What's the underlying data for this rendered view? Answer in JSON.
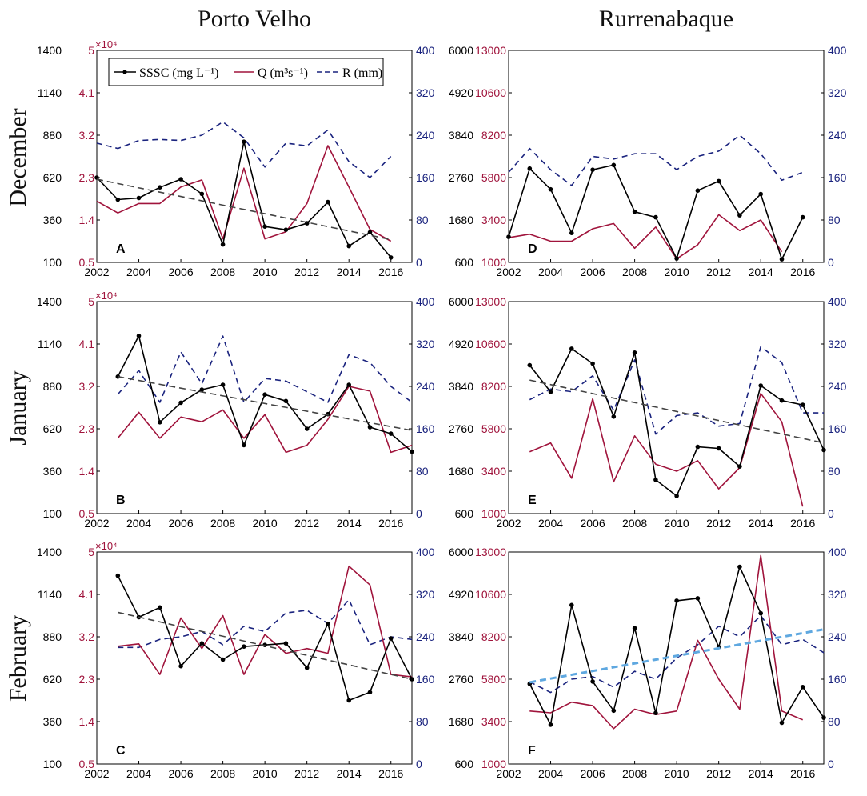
{
  "figure": {
    "column_titles": [
      "Porto Velho",
      "Rurrenabaque"
    ],
    "row_titles": [
      "December",
      "January",
      "February"
    ]
  },
  "colors": {
    "sssc": "#000000",
    "q": "#a0143c",
    "r": "#1a237e",
    "trend_dark": "#444444",
    "trend_light": "#5fa8e0",
    "frame": "#000000"
  },
  "legend": {
    "sssc": "SSSC (mg L⁻¹)",
    "q": "Q (m³s⁻¹)",
    "r": "R (mm)"
  },
  "chart_data": [
    {
      "panel": "A",
      "station": "Porto Velho",
      "month": "December",
      "type": "line",
      "x": [
        2002,
        2003,
        2004,
        2005,
        2006,
        2007,
        2008,
        2009,
        2010,
        2011,
        2012,
        2013,
        2014,
        2015,
        2016
      ],
      "xlim": [
        2002,
        2017
      ],
      "xticks": [
        2002,
        2004,
        2006,
        2008,
        2010,
        2012,
        2014,
        2016
      ],
      "left_ticks": [
        "100",
        "360",
        "620",
        "880",
        "1140",
        "1400"
      ],
      "left_lim": [
        100,
        1400
      ],
      "q_ticks": [
        "0.5",
        "1.4",
        "2.3",
        "3.2",
        "4.1",
        "5"
      ],
      "q_lim": [
        0.5,
        5
      ],
      "q_multiplier": "×10⁴",
      "right_ticks": [
        "0",
        "80",
        "160",
        "240",
        "320",
        "400"
      ],
      "right_lim": [
        0,
        400
      ],
      "series": [
        {
          "name": "SSSC",
          "axis": "left",
          "style": "solid-marker",
          "values": [
            620,
            485,
            495,
            560,
            610,
            520,
            210,
            840,
            320,
            300,
            340,
            470,
            200,
            285,
            130
          ]
        },
        {
          "name": "Q",
          "axis": "q",
          "style": "solid",
          "values": [
            1.8,
            1.55,
            1.75,
            1.75,
            2.1,
            2.25,
            1.0,
            2.5,
            1.0,
            1.15,
            1.75,
            2.98,
            2.1,
            1.2,
            0.95
          ]
        },
        {
          "name": "R",
          "axis": "right",
          "style": "dashed",
          "values": [
            225,
            215,
            230,
            232,
            230,
            240,
            265,
            235,
            180,
            225,
            220,
            250,
            190,
            160,
            200
          ]
        }
      ],
      "trend": {
        "axis": "left",
        "from": [
          2002,
          610
        ],
        "to": [
          2016,
          240
        ],
        "color": "dark"
      }
    },
    {
      "panel": "B",
      "station": "Porto Velho",
      "month": "January",
      "type": "line",
      "x": [
        2003,
        2004,
        2005,
        2006,
        2007,
        2008,
        2009,
        2010,
        2011,
        2012,
        2013,
        2014,
        2015,
        2016,
        2017
      ],
      "xlim": [
        2002,
        2017
      ],
      "xticks": [
        2002,
        2004,
        2006,
        2008,
        2010,
        2012,
        2014,
        2016
      ],
      "left_ticks": [
        "100",
        "360",
        "620",
        "880",
        "1140",
        "1400"
      ],
      "left_lim": [
        100,
        1400
      ],
      "q_ticks": [
        "0.5",
        "1.4",
        "2.3",
        "3.2",
        "4.1",
        "5"
      ],
      "q_lim": [
        0.5,
        5
      ],
      "q_multiplier": "×10⁴",
      "right_ticks": [
        "0",
        "80",
        "160",
        "240",
        "320",
        "400"
      ],
      "right_lim": [
        0,
        400
      ],
      "series": [
        {
          "name": "SSSC",
          "axis": "left",
          "style": "solid-marker",
          "values": [
            940,
            1190,
            660,
            780,
            860,
            890,
            520,
            830,
            790,
            620,
            710,
            890,
            630,
            590,
            480
          ]
        },
        {
          "name": "Q",
          "axis": "q",
          "style": "solid",
          "values": [
            2.1,
            2.65,
            2.1,
            2.55,
            2.45,
            2.7,
            2.1,
            2.6,
            1.8,
            1.95,
            2.5,
            3.2,
            3.1,
            1.8,
            1.95
          ]
        },
        {
          "name": "R",
          "axis": "right",
          "style": "dashed",
          "values": [
            225,
            270,
            210,
            305,
            245,
            335,
            210,
            255,
            250,
            230,
            210,
            300,
            285,
            240,
            210
          ]
        }
      ],
      "trend": {
        "axis": "left",
        "from": [
          2003,
          940
        ],
        "to": [
          2017,
          610
        ],
        "color": "dark"
      }
    },
    {
      "panel": "C",
      "station": "Porto Velho",
      "month": "February",
      "type": "line",
      "x": [
        2003,
        2004,
        2005,
        2006,
        2007,
        2008,
        2009,
        2010,
        2011,
        2012,
        2013,
        2014,
        2015,
        2016,
        2017
      ],
      "xlim": [
        2002,
        2017
      ],
      "xticks": [
        2002,
        2004,
        2006,
        2008,
        2010,
        2012,
        2014,
        2016
      ],
      "left_ticks": [
        "100",
        "360",
        "620",
        "880",
        "1140",
        "1400"
      ],
      "left_lim": [
        100,
        1400
      ],
      "q_ticks": [
        "0.5",
        "1.4",
        "2.3",
        "3.2",
        "4.1",
        "5"
      ],
      "q_lim": [
        0.5,
        5
      ],
      "q_multiplier": "×10⁴",
      "right_ticks": [
        "0",
        "80",
        "160",
        "240",
        "320",
        "400"
      ],
      "right_lim": [
        0,
        400
      ],
      "series": [
        {
          "name": "SSSC",
          "axis": "left",
          "style": "solid-marker",
          "values": [
            1255,
            1000,
            1060,
            700,
            840,
            740,
            820,
            830,
            840,
            690,
            960,
            490,
            540,
            870,
            620
          ]
        },
        {
          "name": "Q",
          "axis": "q",
          "style": "solid",
          "values": [
            3.0,
            3.05,
            2.4,
            3.6,
            2.95,
            3.65,
            2.4,
            3.25,
            2.85,
            2.95,
            2.85,
            4.7,
            4.3,
            2.4,
            2.35
          ]
        },
        {
          "name": "R",
          "axis": "right",
          "style": "dashed",
          "values": [
            220,
            220,
            235,
            240,
            250,
            225,
            260,
            250,
            285,
            290,
            265,
            310,
            225,
            240,
            235
          ]
        }
      ],
      "trend": {
        "axis": "left",
        "from": [
          2003,
          1030
        ],
        "to": [
          2017,
          620
        ],
        "color": "dark"
      }
    },
    {
      "panel": "D",
      "station": "Rurrenabaque",
      "month": "December",
      "type": "line",
      "x": [
        2002,
        2003,
        2004,
        2005,
        2006,
        2007,
        2008,
        2009,
        2010,
        2011,
        2012,
        2013,
        2014,
        2015,
        2016
      ],
      "xlim": [
        2002,
        2017
      ],
      "xticks": [
        2002,
        2004,
        2006,
        2008,
        2010,
        2012,
        2014,
        2016
      ],
      "left_ticks": [
        "600",
        "1680",
        "2760",
        "3840",
        "4920",
        "6000"
      ],
      "left_lim": [
        600,
        6000
      ],
      "q_ticks": [
        "1000",
        "3400",
        "5800",
        "8200",
        "10600",
        "13000"
      ],
      "q_lim": [
        1000,
        13000
      ],
      "q_multiplier": "",
      "right_ticks": [
        "0",
        "80",
        "160",
        "240",
        "320",
        "400"
      ],
      "right_lim": [
        0,
        400
      ],
      "series": [
        {
          "name": "SSSC",
          "axis": "left",
          "style": "solid-marker",
          "values": [
            1250,
            2990,
            2460,
            1350,
            2960,
            3080,
            1890,
            1750,
            700,
            2430,
            2670,
            1800,
            2340,
            680,
            1750
          ]
        },
        {
          "name": "Q",
          "axis": "q",
          "style": "solid",
          "values": [
            2400,
            2600,
            2200,
            2200,
            2900,
            3200,
            1800,
            3000,
            1200,
            2000,
            3700,
            2800,
            3400,
            1600,
            null
          ]
        },
        {
          "name": "R",
          "axis": "right",
          "style": "dashed",
          "values": [
            170,
            215,
            175,
            145,
            200,
            195,
            205,
            205,
            175,
            200,
            210,
            240,
            205,
            155,
            170
          ]
        }
      ]
    },
    {
      "panel": "E",
      "station": "Rurrenabaque",
      "month": "January",
      "type": "line",
      "x": [
        2003,
        2004,
        2005,
        2006,
        2007,
        2008,
        2009,
        2010,
        2011,
        2012,
        2013,
        2014,
        2015,
        2016,
        2017
      ],
      "xlim": [
        2002,
        2017
      ],
      "xticks": [
        2002,
        2004,
        2006,
        2008,
        2010,
        2012,
        2014,
        2016
      ],
      "left_ticks": [
        "600",
        "1680",
        "2760",
        "3840",
        "4920",
        "6000"
      ],
      "left_lim": [
        600,
        6000
      ],
      "q_ticks": [
        "1000",
        "3400",
        "5800",
        "8200",
        "10600",
        "13000"
      ],
      "q_lim": [
        1000,
        13000
      ],
      "q_multiplier": "",
      "right_ticks": [
        "0",
        "80",
        "160",
        "240",
        "320",
        "400"
      ],
      "right_lim": [
        0,
        400
      ],
      "series": [
        {
          "name": "SSSC",
          "axis": "left",
          "style": "solid-marker",
          "values": [
            4380,
            3700,
            4800,
            4420,
            3070,
            4700,
            1460,
            1050,
            2300,
            2260,
            1800,
            3860,
            3480,
            3370,
            2220
          ]
        },
        {
          "name": "Q",
          "axis": "q",
          "style": "solid",
          "values": [
            4500,
            5000,
            3000,
            7500,
            2800,
            5400,
            3800,
            3400,
            4000,
            2400,
            3600,
            7800,
            6200,
            1400,
            null
          ]
        },
        {
          "name": "R",
          "axis": "right",
          "style": "dashed",
          "values": [
            215,
            235,
            230,
            260,
            195,
            290,
            150,
            185,
            190,
            165,
            170,
            315,
            285,
            190,
            190
          ]
        }
      ],
      "trend": {
        "axis": "left",
        "from": [
          2003,
          4000
        ],
        "to": [
          2017,
          2400
        ],
        "color": "dark"
      }
    },
    {
      "panel": "F",
      "station": "Rurrenabaque",
      "month": "February",
      "type": "line",
      "x": [
        2003,
        2004,
        2005,
        2006,
        2007,
        2008,
        2009,
        2010,
        2011,
        2012,
        2013,
        2014,
        2015,
        2016,
        2017
      ],
      "xlim": [
        2002,
        2017
      ],
      "xticks": [
        2002,
        2004,
        2006,
        2008,
        2010,
        2012,
        2014,
        2016
      ],
      "left_ticks": [
        "600",
        "1680",
        "2760",
        "3840",
        "4920",
        "6000"
      ],
      "left_lim": [
        600,
        6000
      ],
      "q_ticks": [
        "1000",
        "3400",
        "5800",
        "8200",
        "10600",
        "13000"
      ],
      "q_lim": [
        1000,
        13000
      ],
      "q_multiplier": "",
      "right_ticks": [
        "0",
        "80",
        "160",
        "240",
        "320",
        "400"
      ],
      "right_lim": [
        0,
        400
      ],
      "series": [
        {
          "name": "SSSC",
          "axis": "left",
          "style": "solid-marker",
          "values": [
            2640,
            1600,
            4650,
            2700,
            1960,
            4060,
            1900,
            4760,
            4820,
            3580,
            5620,
            4440,
            1650,
            2560,
            1780
          ]
        },
        {
          "name": "Q",
          "axis": "q",
          "style": "solid",
          "values": [
            4000,
            3900,
            4500,
            4300,
            3000,
            4100,
            3800,
            4000,
            8000,
            5800,
            4100,
            12800,
            4000,
            3500,
            null
          ]
        },
        {
          "name": "R",
          "axis": "right",
          "style": "dashed",
          "values": [
            155,
            135,
            160,
            165,
            145,
            175,
            160,
            200,
            225,
            260,
            240,
            280,
            225,
            235,
            210
          ]
        }
      ],
      "trend": {
        "axis": "left",
        "from": [
          2003,
          2680
        ],
        "to": [
          2017,
          4030
        ],
        "color": "light"
      }
    }
  ]
}
